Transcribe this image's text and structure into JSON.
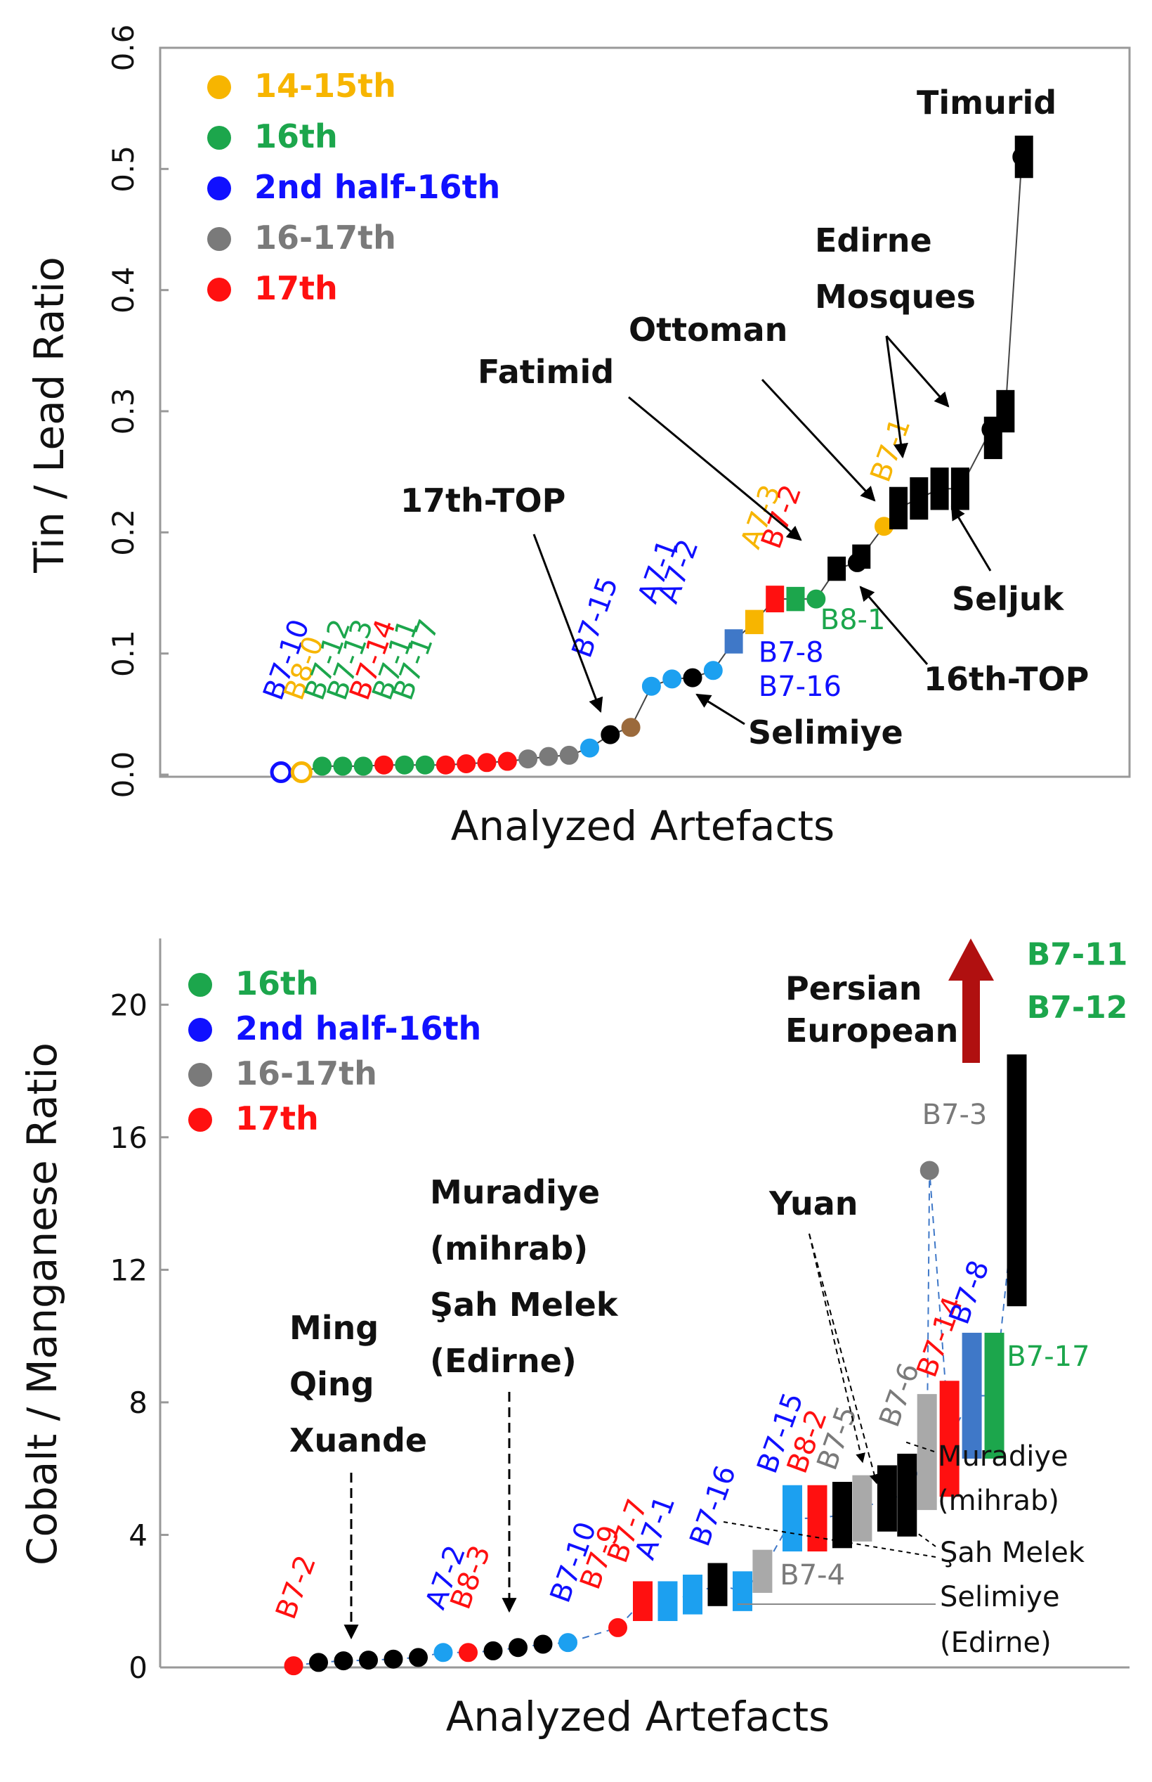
{
  "colors": {
    "c1415": "#f7b500",
    "c16": "#1ca64c",
    "c2h16": "#1010ff",
    "c1617": "#7a7a7a",
    "c17": "#ff1010",
    "black": "#000000",
    "brown": "#9b6a3c",
    "steel": "#3f78c8",
    "lightgray": "#a9a9a9",
    "arrow": "#b01010"
  },
  "chart_data": [
    {
      "type": "scatter",
      "xlabel": "Analyzed Artefacts",
      "ylabel": "Tin / Lead Ratio",
      "ylim": [
        0,
        0.6
      ],
      "yticks": [
        "0.0",
        "0.1",
        "0.2",
        "0.3",
        "0.4",
        "0.5",
        "0.6"
      ],
      "legend": [
        {
          "label": "14-15th",
          "color": "#f7b500"
        },
        {
          "label": "16th",
          "color": "#1ca64c"
        },
        {
          "label": "2nd half-16th",
          "color": "#1010ff"
        },
        {
          "label": "16-17th",
          "color": "#7a7a7a"
        },
        {
          "label": "17th",
          "color": "#ff1010"
        }
      ],
      "series": [
        {
          "kind": "circle",
          "values": [
            {
              "x": 1,
              "y": 0.002,
              "color": "#1010ff",
              "hollow": true
            },
            {
              "x": 2,
              "y": 0.002,
              "color": "#f7b500",
              "hollow": true
            },
            {
              "x": 3,
              "y": 0.007,
              "color": "#1ca64c"
            },
            {
              "x": 4,
              "y": 0.007,
              "color": "#1ca64c"
            },
            {
              "x": 5,
              "y": 0.007,
              "color": "#1ca64c"
            },
            {
              "x": 6,
              "y": 0.008,
              "color": "#ff1010"
            },
            {
              "x": 7,
              "y": 0.008,
              "color": "#1ca64c"
            },
            {
              "x": 8,
              "y": 0.008,
              "color": "#1ca64c"
            },
            {
              "x": 9,
              "y": 0.008,
              "color": "#ff1010"
            },
            {
              "x": 10,
              "y": 0.009,
              "color": "#ff1010"
            },
            {
              "x": 11,
              "y": 0.01,
              "color": "#ff1010"
            },
            {
              "x": 12,
              "y": 0.011,
              "color": "#ff1010"
            },
            {
              "x": 13,
              "y": 0.013,
              "color": "#7a7a7a"
            },
            {
              "x": 14,
              "y": 0.015,
              "color": "#7a7a7a"
            },
            {
              "x": 15,
              "y": 0.016,
              "color": "#7a7a7a"
            },
            {
              "x": 16,
              "y": 0.022,
              "color": "#1ca0f0"
            },
            {
              "x": 17,
              "y": 0.033,
              "color": "#000000"
            },
            {
              "x": 18,
              "y": 0.039,
              "color": "#9b6a3c"
            },
            {
              "x": 19,
              "y": 0.073,
              "color": "#1ca0f0"
            },
            {
              "x": 20,
              "y": 0.079,
              "color": "#1ca0f0"
            },
            {
              "x": 21,
              "y": 0.08,
              "color": "#000000"
            },
            {
              "x": 22,
              "y": 0.086,
              "color": "#1ca0f0"
            },
            {
              "x": 27,
              "y": 0.145,
              "color": "#1ca64c"
            },
            {
              "x": 29,
              "y": 0.175,
              "color": "#000000"
            },
            {
              "x": 30.3,
              "y": 0.205,
              "color": "#f7b500"
            },
            {
              "x": 35.5,
              "y": 0.285,
              "color": "#000000"
            },
            {
              "x": 37,
              "y": 0.51,
              "color": "#000000"
            }
          ]
        },
        {
          "kind": "rect",
          "values": [
            {
              "x": 23,
              "y": 0.11,
              "h": 0.02,
              "color": "#3f78c8"
            },
            {
              "x": 24,
              "y": 0.126,
              "h": 0.02,
              "color": "#f7b500"
            },
            {
              "x": 25,
              "y": 0.145,
              "h": 0.022,
              "color": "#ff1010"
            },
            {
              "x": 26,
              "y": 0.145,
              "h": 0.02,
              "color": "#1ca64c"
            },
            {
              "x": 28,
              "y": 0.17,
              "h": 0.02,
              "color": "#000000"
            },
            {
              "x": 29.2,
              "y": 0.18,
              "h": 0.02,
              "color": "#000000"
            },
            {
              "x": 31,
              "y": 0.22,
              "h": 0.035,
              "color": "#000000"
            },
            {
              "x": 32,
              "y": 0.228,
              "h": 0.035,
              "color": "#000000"
            },
            {
              "x": 33,
              "y": 0.236,
              "h": 0.035,
              "color": "#000000"
            },
            {
              "x": 34,
              "y": 0.236,
              "h": 0.035,
              "color": "#000000"
            },
            {
              "x": 35.6,
              "y": 0.278,
              "h": 0.035,
              "color": "#000000"
            },
            {
              "x": 36.2,
              "y": 0.3,
              "h": 0.035,
              "color": "#000000"
            },
            {
              "x": 37.1,
              "y": 0.51,
              "h": 0.035,
              "color": "#000000"
            }
          ]
        }
      ],
      "point_labels": [
        {
          "text": "B7-10",
          "x": 1,
          "y": 0.06,
          "color": "#1010ff"
        },
        {
          "text": "B8-0",
          "x": 2,
          "y": 0.06,
          "color": "#f7b500"
        },
        {
          "text": "B7-12",
          "x": 3,
          "y": 0.06,
          "color": "#1ca64c"
        },
        {
          "text": "B7-13",
          "x": 4.1,
          "y": 0.06,
          "color": "#1ca64c"
        },
        {
          "text": "B7-14",
          "x": 5.2,
          "y": 0.06,
          "color": "#ff1010"
        },
        {
          "text": "B7-11",
          "x": 6.3,
          "y": 0.06,
          "color": "#1ca64c"
        },
        {
          "text": "B7-17",
          "x": 7.3,
          "y": 0.06,
          "color": "#1ca64c"
        },
        {
          "text": "B7-15",
          "x": 16,
          "y": 0.095,
          "color": "#1010ff"
        },
        {
          "text": "A7-1",
          "x": 19.2,
          "y": 0.14,
          "color": "#1010ff"
        },
        {
          "text": "A7-2",
          "x": 20.2,
          "y": 0.14,
          "color": "#1010ff"
        },
        {
          "text": "A7-3",
          "x": 24.2,
          "y": 0.185,
          "color": "#f7b500"
        },
        {
          "text": "B7-2",
          "x": 25.2,
          "y": 0.185,
          "color": "#ff1010"
        },
        {
          "text": "B7-1",
          "x": 30.5,
          "y": 0.24,
          "color": "#f7b500"
        }
      ],
      "side_labels": [
        {
          "text": "B8-1",
          "x": 27.2,
          "y": 0.12,
          "color": "#1ca64c"
        },
        {
          "text": "B7-8",
          "x": 24.2,
          "y": 0.093,
          "color": "#1010ff"
        },
        {
          "text": "B7-16",
          "x": 24.2,
          "y": 0.065,
          "color": "#1010ff"
        }
      ],
      "annotations": [
        "17th-TOP",
        "Fatimid",
        "Ottoman",
        "Edirne",
        "Mosques",
        "Timurid",
        "Seljuk",
        "16th-TOP",
        "Selimiye"
      ]
    },
    {
      "type": "scatter",
      "xlabel": "Analyzed Artefacts",
      "ylabel": "Cobalt / Manganese Ratio",
      "ylim": [
        0,
        22
      ],
      "yticks": [
        "0",
        "4",
        "8",
        "12",
        "16",
        "20"
      ],
      "legend": [
        {
          "label": "16th",
          "color": "#1ca64c"
        },
        {
          "label": "2nd half-16th",
          "color": "#1010ff"
        },
        {
          "label": "16-17th",
          "color": "#7a7a7a"
        },
        {
          "label": "17th",
          "color": "#ff1010"
        }
      ],
      "series": [
        {
          "kind": "circle",
          "values": [
            {
              "x": 1,
              "y": 0.05,
              "color": "#ff1010"
            },
            {
              "x": 2,
              "y": 0.15,
              "color": "#000000"
            },
            {
              "x": 3,
              "y": 0.2,
              "color": "#000000"
            },
            {
              "x": 4,
              "y": 0.22,
              "color": "#000000"
            },
            {
              "x": 5,
              "y": 0.25,
              "color": "#000000"
            },
            {
              "x": 6,
              "y": 0.3,
              "color": "#000000"
            },
            {
              "x": 7,
              "y": 0.45,
              "color": "#1ca0f0"
            },
            {
              "x": 8,
              "y": 0.45,
              "color": "#ff1010"
            },
            {
              "x": 9,
              "y": 0.5,
              "color": "#000000"
            },
            {
              "x": 10,
              "y": 0.6,
              "color": "#000000"
            },
            {
              "x": 11,
              "y": 0.7,
              "color": "#000000"
            },
            {
              "x": 12,
              "y": 0.75,
              "color": "#1ca0f0"
            },
            {
              "x": 14,
              "y": 1.2,
              "color": "#ff1010"
            },
            {
              "x": 26.5,
              "y": 15.0,
              "color": "#7a7a7a"
            }
          ]
        },
        {
          "kind": "rect",
          "values": [
            {
              "x": 15,
              "y": 2.0,
              "h": 1.2,
              "color": "#ff1010"
            },
            {
              "x": 16,
              "y": 2.0,
              "h": 1.2,
              "color": "#1ca0f0"
            },
            {
              "x": 17,
              "y": 2.2,
              "h": 1.2,
              "color": "#1ca0f0"
            },
            {
              "x": 18,
              "y": 2.5,
              "h": 1.3,
              "color": "#000000"
            },
            {
              "x": 19,
              "y": 2.3,
              "h": 1.2,
              "color": "#1ca0f0"
            },
            {
              "x": 19.8,
              "y": 2.9,
              "h": 1.3,
              "color": "#a9a9a9"
            },
            {
              "x": 21,
              "y": 4.5,
              "h": 2.0,
              "color": "#1ca0f0"
            },
            {
              "x": 22,
              "y": 4.5,
              "h": 2.0,
              "color": "#ff1010"
            },
            {
              "x": 23,
              "y": 4.6,
              "h": 2.0,
              "color": "#000000"
            },
            {
              "x": 23.8,
              "y": 4.8,
              "h": 2.0,
              "color": "#a9a9a9"
            },
            {
              "x": 24.8,
              "y": 5.1,
              "h": 2.0,
              "color": "#000000"
            },
            {
              "x": 25.6,
              "y": 5.2,
              "h": 2.5,
              "color": "#000000"
            },
            {
              "x": 26.4,
              "y": 6.5,
              "h": 3.5,
              "color": "#a9a9a9"
            },
            {
              "x": 27.3,
              "y": 6.9,
              "h": 3.5,
              "color": "#ff1010"
            },
            {
              "x": 28.2,
              "y": 8.2,
              "h": 3.8,
              "color": "#3f78c8"
            },
            {
              "x": 29.1,
              "y": 8.2,
              "h": 3.8,
              "color": "#1ca64c"
            },
            {
              "x": 30,
              "y": 14.7,
              "h": 7.6,
              "color": "#000000"
            }
          ]
        }
      ],
      "point_labels": [
        {
          "text": "B7-2",
          "x": 1,
          "y": 1.4,
          "color": "#ff1010"
        },
        {
          "text": "A7-2",
          "x": 7,
          "y": 1.7,
          "color": "#1010ff"
        },
        {
          "text": "B8-3",
          "x": 8,
          "y": 1.7,
          "color": "#ff1010"
        },
        {
          "text": "B7-10",
          "x": 12,
          "y": 1.9,
          "color": "#1010ff"
        },
        {
          "text": "B7-9",
          "x": 13.2,
          "y": 2.3,
          "color": "#ff1010"
        },
        {
          "text": "B7-7",
          "x": 14.3,
          "y": 3.1,
          "color": "#ff1010"
        },
        {
          "text": "A7-1",
          "x": 15.4,
          "y": 3.2,
          "color": "#1010ff"
        },
        {
          "text": "B7-16",
          "x": 17.6,
          "y": 3.6,
          "color": "#1010ff"
        },
        {
          "text": "B7-15",
          "x": 20.3,
          "y": 5.8,
          "color": "#1010ff"
        },
        {
          "text": "B8-2",
          "x": 21.5,
          "y": 5.8,
          "color": "#ff1010"
        },
        {
          "text": "B7-5",
          "x": 22.7,
          "y": 5.9,
          "color": "#7a7a7a"
        },
        {
          "text": "B7-6",
          "x": 25.2,
          "y": 7.2,
          "color": "#7a7a7a"
        },
        {
          "text": "B7-14",
          "x": 26.7,
          "y": 8.7,
          "color": "#ff1010"
        },
        {
          "text": "B7-8",
          "x": 28.0,
          "y": 10.3,
          "color": "#1010ff"
        }
      ],
      "side_labels": [
        {
          "text": "B7-3",
          "x": 26.2,
          "y": 16.4,
          "color": "#7a7a7a"
        },
        {
          "text": "B7-17",
          "x": 29.6,
          "y": 9.1,
          "color": "#1ca64c"
        },
        {
          "text": "B7-4",
          "x": 20.5,
          "y": 2.5,
          "color": "#7a7a7a"
        },
        {
          "text": "B7-11",
          "x": 30.4,
          "y": 21.2,
          "color": "#1ca64c"
        },
        {
          "text": "B7-12",
          "x": 30.4,
          "y": 19.6,
          "color": "#1ca64c"
        }
      ],
      "annotations": [
        "Ming",
        "Qing",
        "Xuande",
        "Muradiye",
        "(mihrab)",
        "Şah Melek",
        "(Edirne)",
        "Yuan",
        "Persian",
        "European",
        "Muradiye",
        "(mihrab)",
        "Şah Melek",
        "Selimiye",
        "(Edirne)"
      ]
    }
  ]
}
